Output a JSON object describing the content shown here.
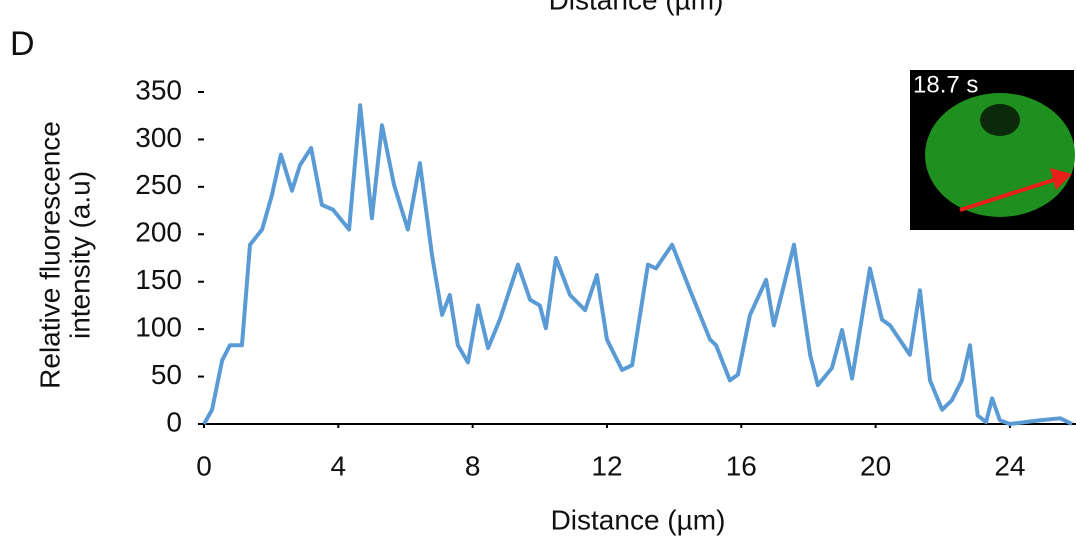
{
  "panel_above_xlabel": "Distance (µm)",
  "panel_label": "D",
  "inset_label": "18.7 s",
  "chart_data": {
    "type": "line",
    "xlabel": "Distance (µm)",
    "ylabel": [
      "Relative fluorescence",
      "intensity (a.u)"
    ],
    "xlim": [
      0,
      25.9
    ],
    "xticks": [
      0,
      4,
      8,
      12,
      16,
      20,
      24
    ],
    "ylim": [
      0,
      350
    ],
    "yticks": [
      0,
      50,
      100,
      150,
      200,
      250,
      300,
      350
    ],
    "grid": false,
    "series": [
      {
        "color": "#5b9bd5",
        "x": [
          0,
          0.24,
          0.54,
          0.77,
          1.13,
          1.37,
          1.73,
          2.02,
          2.29,
          2.62,
          2.86,
          3.19,
          3.51,
          3.84,
          4.32,
          4.65,
          5.0,
          5.3,
          5.66,
          6.07,
          6.43,
          6.79,
          7.09,
          7.32,
          7.56,
          7.86,
          8.16,
          8.46,
          8.81,
          9.35,
          9.71,
          10.0,
          10.18,
          10.48,
          10.9,
          11.35,
          11.7,
          12.0,
          12.45,
          12.75,
          13.22,
          13.46,
          13.94,
          14.53,
          15.07,
          15.25,
          15.66,
          15.9,
          16.26,
          16.74,
          16.97,
          17.57,
          18.05,
          18.28,
          18.7,
          19.0,
          19.3,
          19.83,
          20.19,
          20.43,
          21.02,
          21.32,
          21.62,
          21.98,
          22.27,
          22.57,
          22.81,
          23.04,
          23.29,
          23.47,
          23.7,
          24.0,
          24.9,
          25.5,
          25.85
        ],
        "values": [
          0,
          15,
          67,
          83,
          83,
          189,
          205,
          241,
          284,
          246,
          273,
          291,
          231,
          226,
          205,
          336,
          217,
          315,
          252,
          205,
          275,
          178,
          115,
          136,
          83,
          65,
          125,
          80,
          110,
          168,
          131,
          125,
          101,
          175,
          136,
          120,
          157,
          89,
          57,
          62,
          168,
          164,
          189,
          136,
          89,
          83,
          46,
          52,
          115,
          152,
          104,
          189,
          73,
          41,
          59,
          99,
          48,
          164,
          110,
          104,
          73,
          141,
          46,
          15,
          25,
          46,
          83,
          9,
          2,
          27,
          4,
          0,
          4,
          6,
          0
        ]
      }
    ]
  }
}
